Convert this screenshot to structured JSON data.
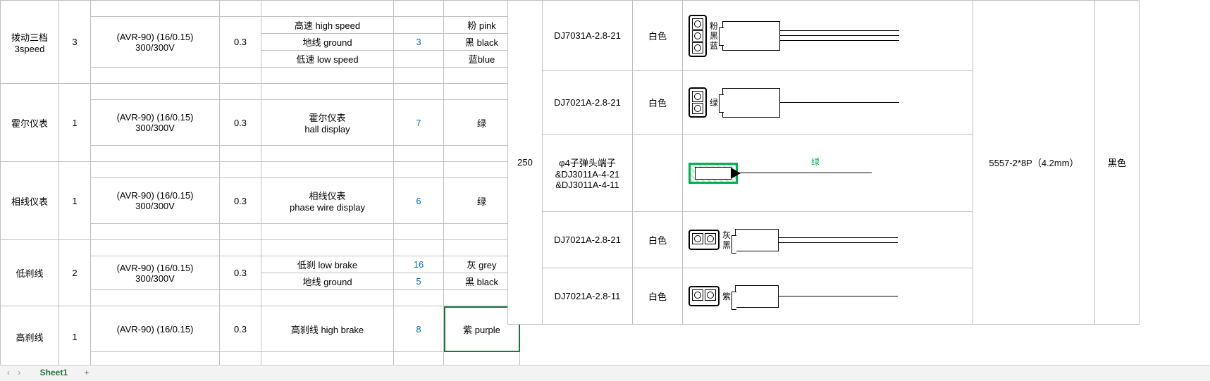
{
  "left_rows": [
    {
      "name": "拨动三档\n3speed",
      "qty": "3",
      "spec": "(AVR-90) (16/0.15)\n300/300V",
      "dia": "0.3",
      "lines": [
        {
          "func": "高速 high speed",
          "num": "",
          "color": "粉 pink"
        },
        {
          "func": "地线 ground",
          "num": "3",
          "num_blue": true,
          "color": "黑 black"
        },
        {
          "func": "低速 low speed",
          "num": "",
          "color": "蓝blue"
        }
      ]
    },
    {
      "name": "霍尔仪表",
      "qty": "1",
      "spec": "(AVR-90) (16/0.15)\n300/300V",
      "dia": "0.3",
      "lines": [
        {
          "func": "霍尔仪表\nhall display",
          "num": "7",
          "num_blue": true,
          "color": "绿"
        }
      ]
    },
    {
      "name": "相线仪表",
      "qty": "1",
      "spec": "(AVR-90) (16/0.15)\n300/300V",
      "dia": "0.3",
      "lines": [
        {
          "func": "相线仪表\nphase wire display",
          "num": "6",
          "num_blue": true,
          "color": "绿"
        }
      ]
    },
    {
      "name": "低刹线",
      "qty": "2",
      "spec": "(AVR-90) (16/0.15)\n300/300V",
      "dia": "0.3",
      "lines": [
        {
          "func": "低刹 low brake",
          "num": "16",
          "num_blue": true,
          "color": "灰 grey"
        },
        {
          "func": "地线 ground",
          "num": "5",
          "num_blue": true,
          "color": "黑 black"
        }
      ]
    },
    {
      "name": "高刹线",
      "qty": "1",
      "spec": "(AVR-90) (16/0.15)",
      "dia": "0.3",
      "lines": [
        {
          "func": "高刹线 high brake",
          "num": "8",
          "num_blue": true,
          "color": "紫 purple",
          "selected": true
        }
      ],
      "short": true
    }
  ],
  "mid_len": "250",
  "mid_rows": [
    {
      "part": "DJ7031A-2.8-21",
      "c": "白色",
      "pins": 3,
      "labels": "粉\n黑\n蓝",
      "wires": 3
    },
    {
      "part": "DJ7021A-2.8-21",
      "c": "白色",
      "pins": 2,
      "labels": "绿",
      "wires": 1
    },
    {
      "part": "φ4子弹头端子\n&DJ3011A-4-21\n&DJ3011A-4-11",
      "c": "",
      "bullet": true,
      "label_right": "绿"
    },
    {
      "part": "DJ7021A-2.8-21",
      "c": "白色",
      "pins": 2,
      "row": true,
      "labels": "灰\n黑",
      "wires": 2,
      "housing_small": true
    },
    {
      "part": "DJ7021A-2.8-11",
      "c": "白色",
      "pins": 2,
      "row": true,
      "labels": "紫",
      "wires": 1,
      "housing_small": true
    }
  ],
  "right": {
    "part": "5557-2*8P（4.2mm）",
    "c": "黑色"
  },
  "sheet": {
    "nav": "‹  ›",
    "tab": "Sheet1",
    "plus": "+"
  }
}
